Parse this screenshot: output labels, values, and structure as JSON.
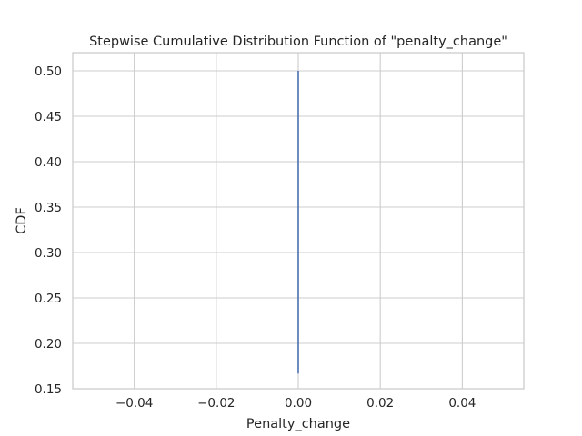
{
  "chart_data": {
    "type": "line",
    "title": "Stepwise Cumulative Distribution Function of \"penalty_change\"",
    "xlabel": "Penalty_change",
    "ylabel": "CDF",
    "xlim": [
      -0.055,
      0.055
    ],
    "ylim": [
      0.15,
      0.52
    ],
    "x_ticks": [
      -0.04,
      -0.02,
      0.0,
      0.02,
      0.04
    ],
    "x_tick_labels": [
      "−0.04",
      "−0.02",
      "0.00",
      "0.02",
      "0.04"
    ],
    "y_ticks": [
      0.15,
      0.2,
      0.25,
      0.3,
      0.35,
      0.4,
      0.45,
      0.5
    ],
    "y_tick_labels": [
      "0.15",
      "0.20",
      "0.25",
      "0.30",
      "0.35",
      "0.40",
      "0.45",
      "0.50"
    ],
    "grid": true,
    "legend": "none",
    "series": [
      {
        "x": [
          0.0,
          0.0
        ],
        "y": [
          0.1667,
          0.5
        ],
        "color": "#4c72b0"
      }
    ]
  }
}
